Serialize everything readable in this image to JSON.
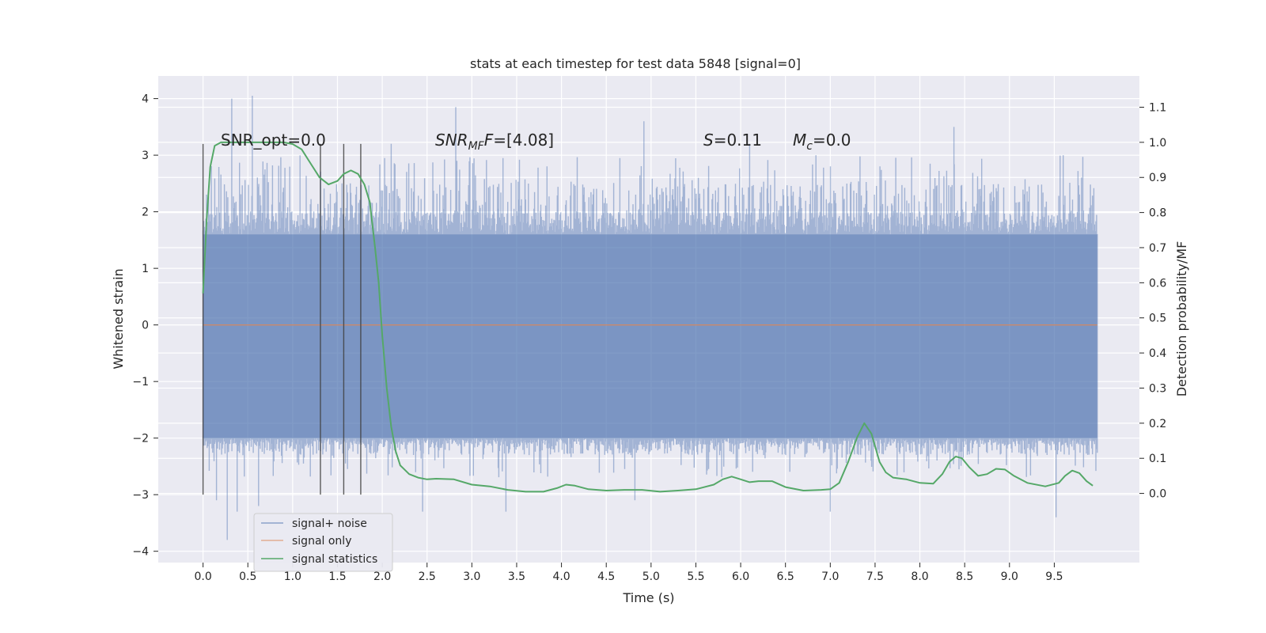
{
  "chart_data": {
    "type": "line",
    "title": "stats at each timestep for test data 5848 [signal=0]",
    "xlabel": "Time (s)",
    "ylabel": "Whitened strain",
    "y2label": "Detection probability/MF",
    "xlim": [
      -0.5,
      10.45
    ],
    "ylim": [
      -4.2,
      4.4
    ],
    "y2lim": [
      -0.197,
      1.189
    ],
    "xticks": [
      "0.0",
      "0.5",
      "1.0",
      "1.5",
      "2.0",
      "2.5",
      "3.0",
      "3.5",
      "4.0",
      "4.5",
      "5.0",
      "5.5",
      "6.0",
      "6.5",
      "7.0",
      "7.5",
      "8.0",
      "8.5",
      "9.0",
      "9.5"
    ],
    "yticks": [
      "4",
      "3",
      "2",
      "1",
      "0",
      "−1",
      "−2",
      "−3",
      "−4"
    ],
    "y2ticks": [
      "1.1",
      "1.0",
      "0.9",
      "0.8",
      "0.7",
      "0.6",
      "0.5",
      "0.4",
      "0.3",
      "0.2",
      "0.1",
      "0.0"
    ],
    "grid": true,
    "legend_position": "lower-left",
    "colors": {
      "background": "#eaeaf2",
      "grid": "#ffffff",
      "noise": "#4c72b0",
      "signal_only": "#dd8452",
      "statistics": "#55a868",
      "vlines": "#404040"
    },
    "annotations": {
      "snr_opt": "SNR_opt=0.0",
      "snr_mf_base": "SNR",
      "snr_mf_sub": "MF",
      "snr_mf_rest": "=[4.08]",
      "s_var": "S",
      "s_rest": "=0.11",
      "mc_base": "M",
      "mc_sub": "c",
      "mc_rest": "=0.0"
    },
    "vlines": {
      "x": [
        0.0,
        1.31,
        1.57,
        1.76
      ],
      "y_range": [
        -3.0,
        3.2
      ]
    },
    "series": [
      {
        "name": "signal+ noise",
        "x_range": [
          0.0,
          9.98
        ],
        "band": [
          -2.0,
          1.6
        ],
        "typical_envelope": [
          -2.3,
          2.5
        ],
        "spikes": [
          {
            "x": 0.27,
            "y": -3.8
          },
          {
            "x": 0.32,
            "y": 4.0
          },
          {
            "x": 0.55,
            "y": 4.05
          },
          {
            "x": 0.62,
            "y": -3.2
          },
          {
            "x": 0.15,
            "y": -3.1
          },
          {
            "x": 0.38,
            "y": -3.3
          },
          {
            "x": 2.82,
            "y": 3.85
          },
          {
            "x": 2.45,
            "y": -3.3
          },
          {
            "x": 3.38,
            "y": -3.3
          },
          {
            "x": 4.92,
            "y": 3.6
          },
          {
            "x": 4.82,
            "y": -3.1
          },
          {
            "x": 6.1,
            "y": 3.2
          },
          {
            "x": 6.84,
            "y": 3.0
          },
          {
            "x": 7.0,
            "y": -3.3
          },
          {
            "x": 8.38,
            "y": 3.5
          },
          {
            "x": 9.52,
            "y": -3.4
          },
          {
            "x": 2.1,
            "y": 3.2
          },
          {
            "x": 9.6,
            "y": 3.0
          }
        ]
      },
      {
        "name": "signal only",
        "x": [
          0.0,
          9.98
        ],
        "y": [
          0.0,
          0.0
        ]
      },
      {
        "name": "signal statistics",
        "x": [
          0.0,
          0.04,
          0.08,
          0.13,
          0.2,
          0.3,
          0.5,
          0.7,
          0.9,
          1.0,
          1.1,
          1.2,
          1.3,
          1.4,
          1.5,
          1.57,
          1.65,
          1.73,
          1.8,
          1.86,
          1.92,
          1.96,
          2.0,
          2.05,
          2.1,
          2.15,
          2.2,
          2.3,
          2.4,
          2.5,
          2.6,
          2.8,
          3.0,
          3.2,
          3.4,
          3.6,
          3.8,
          3.95,
          4.05,
          4.15,
          4.3,
          4.5,
          4.7,
          4.9,
          5.1,
          5.3,
          5.5,
          5.7,
          5.8,
          5.9,
          6.0,
          6.1,
          6.2,
          6.35,
          6.5,
          6.7,
          6.9,
          7.0,
          7.1,
          7.2,
          7.3,
          7.38,
          7.46,
          7.55,
          7.62,
          7.7,
          7.85,
          8.0,
          8.15,
          8.25,
          8.33,
          8.4,
          8.47,
          8.55,
          8.65,
          8.75,
          8.85,
          8.95,
          9.05,
          9.2,
          9.4,
          9.55,
          9.62,
          9.7,
          9.78,
          9.86,
          9.93
        ],
        "y": [
          0.57,
          0.78,
          0.93,
          0.99,
          1.0,
          1.0,
          1.0,
          1.0,
          1.0,
          0.995,
          0.98,
          0.94,
          0.9,
          0.88,
          0.89,
          0.91,
          0.92,
          0.91,
          0.88,
          0.83,
          0.7,
          0.6,
          0.45,
          0.3,
          0.19,
          0.12,
          0.08,
          0.055,
          0.045,
          0.04,
          0.042,
          0.04,
          0.025,
          0.02,
          0.01,
          0.005,
          0.005,
          0.015,
          0.025,
          0.022,
          0.012,
          0.008,
          0.01,
          0.01,
          0.005,
          0.008,
          0.012,
          0.025,
          0.04,
          0.048,
          0.04,
          0.032,
          0.035,
          0.035,
          0.018,
          0.008,
          0.01,
          0.012,
          0.03,
          0.09,
          0.16,
          0.2,
          0.17,
          0.09,
          0.06,
          0.045,
          0.04,
          0.03,
          0.028,
          0.055,
          0.09,
          0.105,
          0.1,
          0.075,
          0.05,
          0.055,
          0.07,
          0.068,
          0.05,
          0.03,
          0.02,
          0.03,
          0.05,
          0.065,
          0.058,
          0.035,
          0.022
        ]
      }
    ]
  }
}
